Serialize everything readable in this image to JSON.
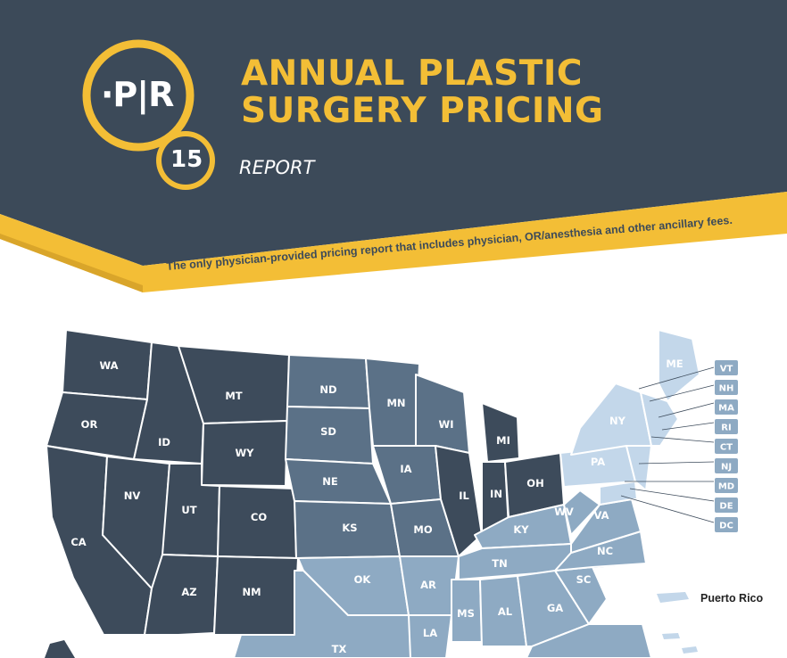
{
  "header": {
    "title_line1": "ANNUAL PLASTIC",
    "title_line2": "SURGERY PRICING",
    "subtitle": "REPORT",
    "logo_text": "·P|R",
    "logo_number": "15",
    "tagline": "The only physician-provided pricing report that includes physician, OR/anesthesia and other ancillary fees."
  },
  "colors": {
    "header_bg": "#3c4a59",
    "accent_yellow": "#f3be36",
    "region_dark": "#3d4b5b",
    "region_mid": "#5b7187",
    "region_light": "#8eaac3",
    "region_pale": "#c3d7ea"
  },
  "map": {
    "states": [
      {
        "id": "WA",
        "label": "WA"
      },
      {
        "id": "OR",
        "label": "OR"
      },
      {
        "id": "CA",
        "label": "CA"
      },
      {
        "id": "ID",
        "label": "ID"
      },
      {
        "id": "NV",
        "label": "NV"
      },
      {
        "id": "MT",
        "label": "MT"
      },
      {
        "id": "WY",
        "label": "WY"
      },
      {
        "id": "UT",
        "label": "UT"
      },
      {
        "id": "AZ",
        "label": "AZ"
      },
      {
        "id": "CO",
        "label": "CO"
      },
      {
        "id": "NM",
        "label": "NM"
      },
      {
        "id": "ND",
        "label": "ND"
      },
      {
        "id": "SD",
        "label": "SD"
      },
      {
        "id": "NE",
        "label": "NE"
      },
      {
        "id": "KS",
        "label": "KS"
      },
      {
        "id": "OK",
        "label": "OK"
      },
      {
        "id": "TX",
        "label": "TX"
      },
      {
        "id": "MN",
        "label": "MN"
      },
      {
        "id": "IA",
        "label": "IA"
      },
      {
        "id": "MO",
        "label": "MO"
      },
      {
        "id": "AR",
        "label": "AR"
      },
      {
        "id": "LA",
        "label": "LA"
      },
      {
        "id": "WI",
        "label": "WI"
      },
      {
        "id": "IL",
        "label": "IL"
      },
      {
        "id": "MI",
        "label": "MI"
      },
      {
        "id": "IN",
        "label": "IN"
      },
      {
        "id": "OH",
        "label": "OH"
      },
      {
        "id": "KY",
        "label": "KY"
      },
      {
        "id": "TN",
        "label": "TN"
      },
      {
        "id": "MS",
        "label": "MS"
      },
      {
        "id": "AL",
        "label": "AL"
      },
      {
        "id": "GA",
        "label": "GA"
      },
      {
        "id": "SC",
        "label": "SC"
      },
      {
        "id": "NC",
        "label": "NC"
      },
      {
        "id": "VA",
        "label": "VA"
      },
      {
        "id": "WV",
        "label": "WV"
      },
      {
        "id": "PA",
        "label": "PA"
      },
      {
        "id": "NY",
        "label": "NY"
      },
      {
        "id": "ME",
        "label": "ME"
      }
    ],
    "northeast_labels": [
      "VT",
      "NH",
      "MA",
      "RI",
      "CT",
      "NJ",
      "MD",
      "DE",
      "DC"
    ],
    "puerto_rico_label": "Puerto Rico"
  }
}
